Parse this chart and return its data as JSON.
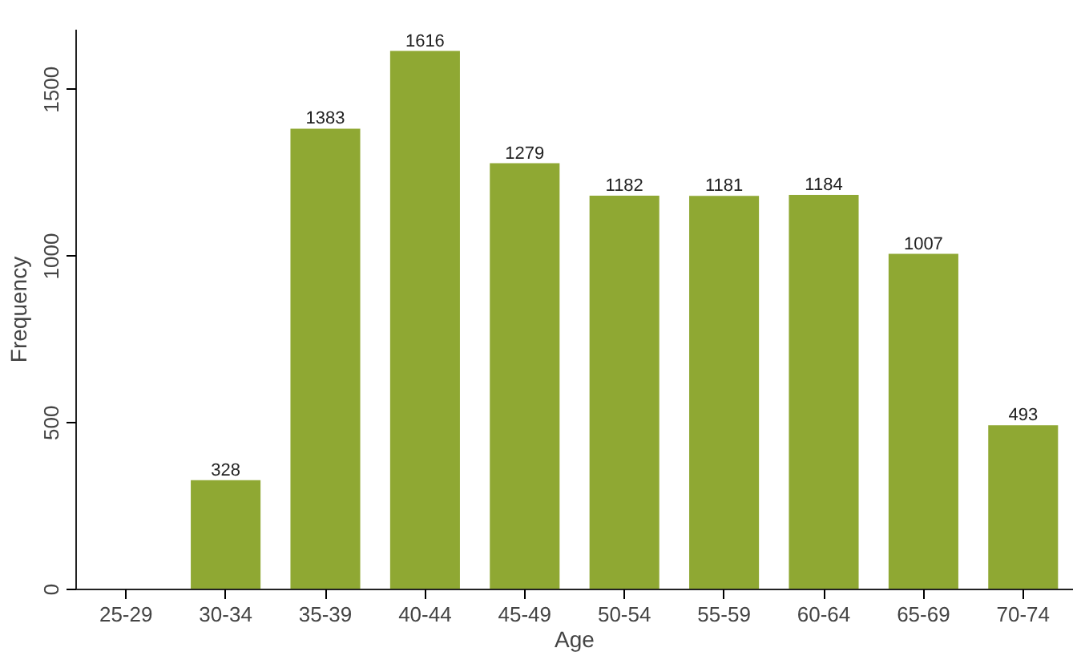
{
  "chart_data": {
    "type": "bar",
    "xlabel": "Age",
    "ylabel": "Frequency",
    "categories": [
      "25-29",
      "30-34",
      "35-39",
      "40-44",
      "45-49",
      "50-54",
      "55-59",
      "60-64",
      "65-69",
      "70-74"
    ],
    "values": [
      null,
      328,
      1383,
      1616,
      1279,
      1182,
      1181,
      1184,
      1007,
      493
    ],
    "value_labels": [
      null,
      "328",
      "1383",
      "1616",
      "1279",
      "1182",
      "1181",
      "1184",
      "1007",
      "493"
    ],
    "color": "#8fa833",
    "ylim": [
      0,
      1680
    ],
    "yticks": [
      0,
      500,
      1000,
      1500
    ],
    "grid": false
  }
}
